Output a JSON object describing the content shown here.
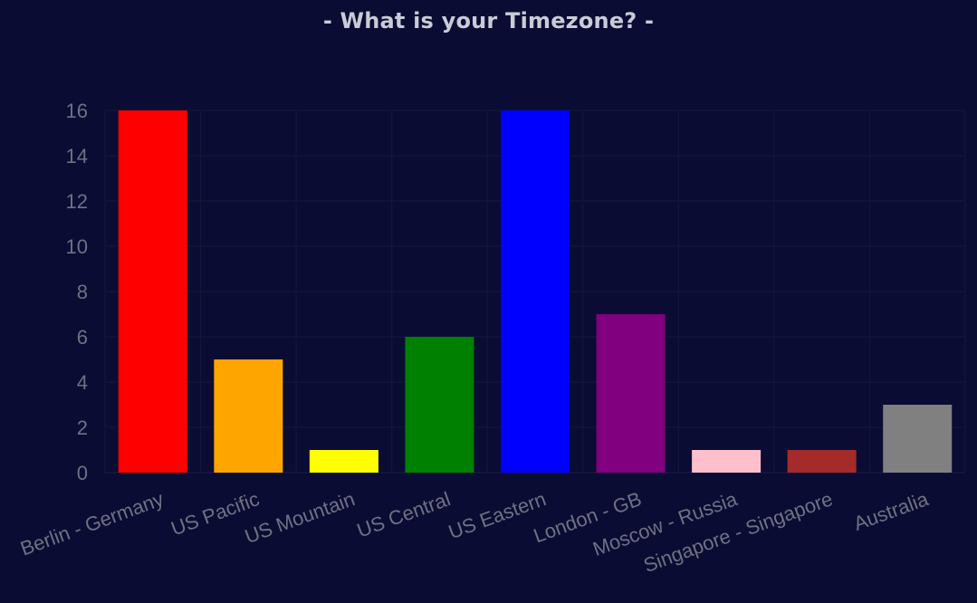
{
  "chart_data": {
    "type": "bar",
    "title": "- What is your Timezone? -",
    "xlabel": "",
    "ylabel": "",
    "categories": [
      "Berlin - Germany",
      "US Pacific",
      "US Mountain",
      "US Central",
      "US Eastern",
      "London - GB",
      "Moscow - Russia",
      "Singapore - Singapore",
      "Australia"
    ],
    "values": [
      16,
      5,
      1,
      6,
      16,
      7,
      1,
      1,
      3
    ],
    "colors": [
      "#ff0000",
      "#ffa500",
      "#ffff00",
      "#008000",
      "#0000ff",
      "#800080",
      "#ffc0cb",
      "#a52a2a",
      "#808080"
    ],
    "ylim": [
      0,
      16
    ],
    "yticks": [
      0,
      2,
      4,
      6,
      8,
      10,
      12,
      14,
      16
    ],
    "grid": true,
    "legend": "none"
  },
  "theme": {
    "background": "#0b0c33",
    "text_color": "#6f7183",
    "title_color": "#c9cbd6"
  }
}
